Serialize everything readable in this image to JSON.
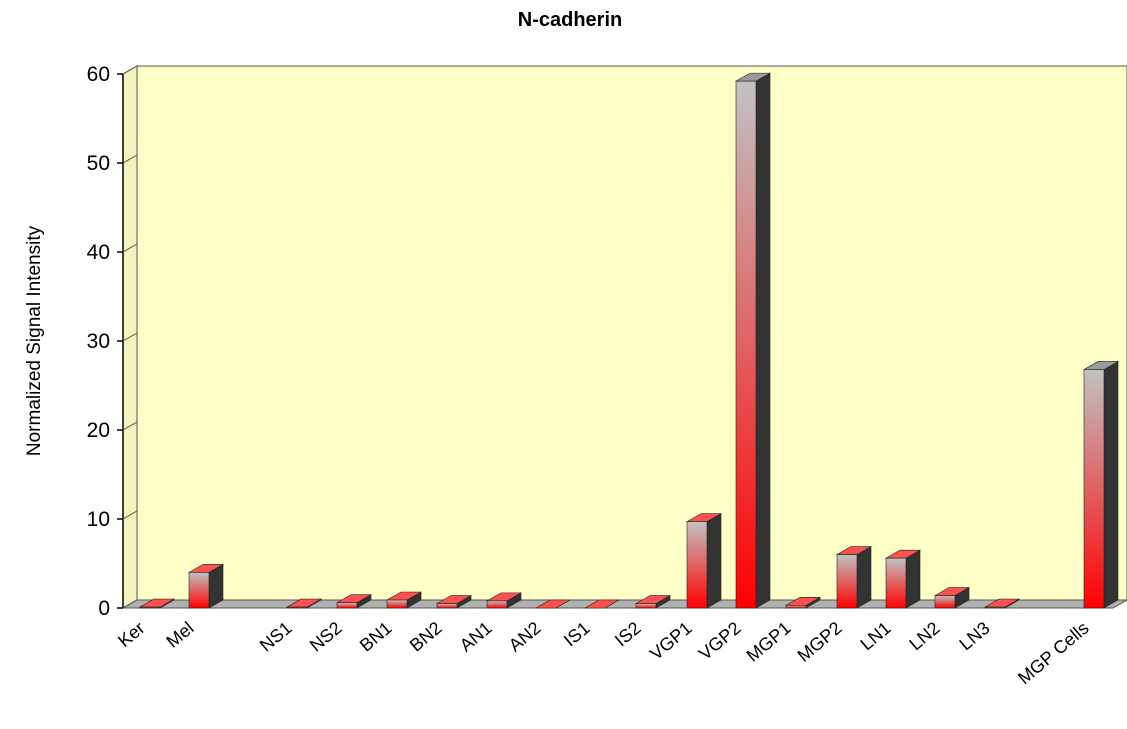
{
  "chart_data": {
    "type": "bar",
    "title": "N-cadherin",
    "xlabel": "",
    "ylabel": "Normalized Signal Intensity",
    "ylim": [
      0,
      60
    ],
    "yticks": [
      0,
      10,
      20,
      30,
      40,
      50,
      60
    ],
    "categories": [
      "Ker",
      "Mel",
      "NS1",
      "NS2",
      "BN1",
      "BN2",
      "AN1",
      "AN2",
      "IS1",
      "IS2",
      "VGP1",
      "VGP2",
      "MGP1",
      "MGP2",
      "LN1",
      "LN2",
      "LN3",
      "MGP Cells"
    ],
    "values": [
      0.1,
      4.0,
      0.1,
      0.6,
      0.9,
      0.5,
      0.8,
      0.0,
      0.0,
      0.5,
      9.7,
      59.2,
      0.3,
      6.0,
      5.6,
      1.4,
      0.1,
      26.8
    ],
    "grid": false,
    "background_color": "#ffffc8",
    "bar_colors": {
      "top": "#c2c2c2",
      "bottom": "#ff0000",
      "side": "#333333"
    }
  }
}
